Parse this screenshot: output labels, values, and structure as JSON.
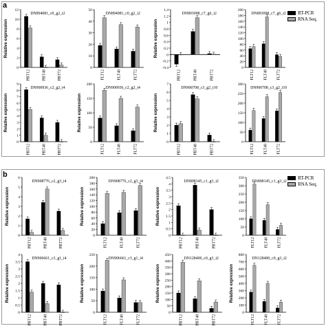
{
  "figure": {
    "panel_a_letter": "a",
    "panel_b_letter": "b",
    "legend": {
      "rt_pcr": "RT-PCR",
      "rna_seq": "RNA Seq."
    },
    "colors": {
      "rt_pcr": "#000000",
      "rna_seq": "#a8a8a8",
      "frame": "#9a9a9a"
    }
  },
  "chart_data": [
    {
      "type": "bar",
      "panel": "a",
      "title": "DN894081_c0_g2_i2",
      "ylabel": "Relative expression",
      "categories": [
        "PBT12",
        "PBT48",
        "PBT72"
      ],
      "ylim": [
        0,
        12
      ],
      "yticks": [
        0,
        2,
        4,
        6,
        8,
        10,
        12
      ],
      "series": [
        {
          "name": "RT-PCR",
          "values": [
            10.6,
            2.2,
            1.6
          ]
        },
        {
          "name": "RNA Seq.",
          "values": [
            8.2,
            0,
            0.5
          ]
        }
      ]
    },
    {
      "type": "bar",
      "panel": "a",
      "title": "DN894081_c0_g2_i2",
      "ylabel": "",
      "categories": [
        "FLT12",
        "FLT48",
        "FLT72"
      ],
      "ylim": [
        0,
        50
      ],
      "yticks": [
        0,
        10,
        20,
        30,
        40,
        50
      ],
      "series": [
        {
          "name": "RT-PCR",
          "values": [
            19,
            16,
            14
          ]
        },
        {
          "name": "RNA Seq.",
          "values": [
            43,
            37,
            35
          ]
        }
      ]
    },
    {
      "type": "bar",
      "panel": "a",
      "title": "DN893098_c7_g6_i2",
      "ylabel": "Relative expression",
      "categories": [
        "PBT12",
        "PBT48",
        "PBT72"
      ],
      "ylim": [
        -0.4,
        1.4
      ],
      "yticks": [
        -0.4,
        -0.2,
        0,
        0.2,
        0.4,
        0.6,
        0.8,
        1,
        1.2,
        1.4
      ],
      "series": [
        {
          "name": "RT-PCR",
          "values": [
            -0.3,
            0.72,
            0.03
          ]
        },
        {
          "name": "RNA Seq.",
          "values": [
            0,
            1.15,
            0.01
          ]
        }
      ]
    },
    {
      "type": "bar",
      "panel": "a",
      "title": "DN893098_c7_g6_i2",
      "ylabel": "",
      "categories": [
        "FLT12",
        "FLT48",
        "FLT72"
      ],
      "ylim": [
        0,
        200
      ],
      "yticks": [
        0,
        20,
        40,
        60,
        80,
        100,
        120,
        140,
        160,
        180,
        200
      ],
      "series": [
        {
          "name": "RT-PCR",
          "values": [
            65,
            82,
            44
          ]
        },
        {
          "name": "RNA Seq.",
          "values": [
            72,
            175,
            38
          ]
        }
      ]
    },
    {
      "type": "bar",
      "panel": "a",
      "title": "DN900936_c2_g2_i4",
      "ylabel": "Relative expression",
      "categories": [
        "PBT12",
        "PBT48",
        "PBT72"
      ],
      "ylim": [
        0,
        9
      ],
      "yticks": [
        0,
        1,
        2,
        3,
        4,
        5,
        6,
        7,
        8,
        9
      ],
      "series": [
        {
          "name": "RT-PCR",
          "values": [
            8.1,
            3.7,
            3.0
          ]
        },
        {
          "name": "RNA Seq.",
          "values": [
            5.0,
            1.0,
            0
          ]
        }
      ]
    },
    {
      "type": "bar",
      "panel": "a",
      "title": "DN900936_c2_g2_i4",
      "ylabel": "Relative expression",
      "categories": [
        "FLT12",
        "FLT48",
        "FLT72"
      ],
      "ylim": [
        0,
        200
      ],
      "yticks": [
        0,
        50,
        100,
        150,
        200
      ],
      "series": [
        {
          "name": "RT-PCR",
          "values": [
            82,
            55,
            38
          ]
        },
        {
          "name": "RNA Seq.",
          "values": [
            178,
            150,
            120
          ]
        }
      ]
    },
    {
      "type": "bar",
      "panel": "a",
      "title": "DN900708_c3_g2_i10",
      "ylabel": "Relative expression",
      "categories": [
        "PBT12",
        "PBT48",
        "PBT72"
      ],
      "ylim": [
        0,
        7
      ],
      "yticks": [
        0,
        1,
        2,
        3,
        4,
        5,
        6,
        7
      ],
      "series": [
        {
          "name": "RT-PCR",
          "values": [
            2.0,
            5.7,
            0.8
          ]
        },
        {
          "name": "RNA Seq.",
          "values": [
            2.2,
            5.2,
            0
          ]
        }
      ]
    },
    {
      "type": "bar",
      "panel": "a",
      "title": "DN900708_c3_g2_i10",
      "ylabel": "",
      "categories": [
        "FLT12",
        "FLT48",
        "FLT72"
      ],
      "ylim": [
        0,
        300
      ],
      "yticks": [
        0,
        50,
        100,
        150,
        200,
        250,
        300
      ],
      "series": [
        {
          "name": "RT-PCR",
          "values": [
            60,
            120,
            160
          ]
        },
        {
          "name": "RNA Seq.",
          "values": [
            162,
            233,
            255
          ]
        }
      ]
    },
    {
      "type": "bar",
      "panel": "b",
      "title": "DN908776_c2_g3_i4",
      "ylabel": "Relative expression",
      "categories": [
        "PBT12",
        "PBT48",
        "PBT72"
      ],
      "ylim": [
        0,
        6
      ],
      "yticks": [
        0,
        1,
        2,
        3,
        4,
        5,
        6
      ],
      "series": [
        {
          "name": "RT-PCR",
          "values": [
            1.7,
            3.4,
            2.5
          ]
        },
        {
          "name": "RNA Seq.",
          "values": [
            0.3,
            4.8,
            0.5
          ]
        }
      ]
    },
    {
      "type": "bar",
      "panel": "b",
      "title": "DN908776_c2_g3_i4",
      "ylabel": "Relative expression",
      "categories": [
        "FLT12",
        "FLT48",
        "FLT72"
      ],
      "ylim": [
        0,
        200
      ],
      "yticks": [
        0,
        20,
        40,
        60,
        80,
        100,
        120,
        140,
        160,
        180,
        200
      ],
      "series": [
        {
          "name": "RT-PCR",
          "values": [
            40,
            78,
            85
          ]
        },
        {
          "name": "RNA Seq.",
          "values": [
            145,
            148,
            172
          ]
        }
      ]
    },
    {
      "type": "bar",
      "panel": "b",
      "title": "DN898145_c1_g3_i2",
      "ylabel": "Relative expression",
      "categories": [
        "PBT12",
        "PBT48",
        "PBT72"
      ],
      "ylim": [
        0,
        4.5
      ],
      "yticks": [
        0,
        0.5,
        1,
        1.5,
        2,
        2.5,
        3,
        3.5,
        4,
        4.5
      ],
      "series": [
        {
          "name": "RT-PCR",
          "values": [
            2.3,
            3.9,
            2.0
          ]
        },
        {
          "name": "RNA Seq.",
          "values": [
            0,
            0.4,
            0
          ]
        }
      ]
    },
    {
      "type": "bar",
      "panel": "b",
      "title": "DN898145_c1_g3_i2",
      "ylabel": "",
      "categories": [
        "FLT12",
        "FLT48",
        "FLT72"
      ],
      "ylim": [
        0,
        350
      ],
      "yticks": [
        0,
        50,
        100,
        150,
        200,
        250,
        300,
        350
      ],
      "series": [
        {
          "name": "RT-PCR",
          "values": [
            100,
            90,
            35
          ]
        },
        {
          "name": "RNA Seq.",
          "values": [
            310,
            185,
            60
          ]
        }
      ]
    },
    {
      "type": "bar",
      "panel": "b",
      "title": "DN906661_c3_g1_i4",
      "ylabel": "Relative expression",
      "categories": [
        "PBT12",
        "PBT48",
        "PBT72"
      ],
      "ylim": [
        0,
        4
      ],
      "yticks": [
        0,
        0.5,
        1,
        1.5,
        2,
        2.5,
        3,
        3.5,
        4
      ],
      "series": [
        {
          "name": "RT-PCR",
          "values": [
            3.5,
            2.0,
            1.9
          ]
        },
        {
          "name": "RNA Seq.",
          "values": [
            1.4,
            0.6,
            0
          ]
        }
      ]
    },
    {
      "type": "bar",
      "panel": "b",
      "title": "DN906661_c3_g1_i4",
      "ylabel": "Relative expression",
      "categories": [
        "FLT12",
        "FLT48",
        "FLT72"
      ],
      "ylim": [
        0,
        250
      ],
      "yticks": [
        0,
        50,
        100,
        150,
        200,
        250
      ],
      "series": [
        {
          "name": "RT-PCR",
          "values": [
            92,
            62,
            42
          ]
        },
        {
          "name": "RNA Seq.",
          "values": [
            225,
            140,
            42
          ]
        }
      ]
    },
    {
      "type": "bar",
      "panel": "b",
      "title": "DN128400_c0_g3_i2",
      "ylabel": "Relative expression",
      "categories": [
        "PBT12",
        "PBT48",
        "PBT72"
      ],
      "ylim": [
        0,
        450
      ],
      "yticks": [
        0,
        50,
        100,
        150,
        200,
        250,
        300,
        350,
        400,
        450
      ],
      "series": [
        {
          "name": "RT-PCR",
          "values": [
            150,
            105,
            30
          ]
        },
        {
          "name": "RNA Seq.",
          "values": [
            390,
            245,
            80
          ]
        }
      ]
    },
    {
      "type": "bar",
      "panel": "b",
      "title": "DN128400_c0_g3_i2",
      "ylabel": "Relative expression",
      "categories": [
        "FLT12",
        "FLT48",
        "FLT72"
      ],
      "ylim": [
        0,
        800
      ],
      "yticks": [
        0,
        100,
        200,
        300,
        400,
        500,
        600,
        700,
        800
      ],
      "series": [
        {
          "name": "RT-PCR",
          "values": [
            280,
            150,
            60
          ]
        },
        {
          "name": "RNA Seq.",
          "values": [
            650,
            400,
            140
          ]
        }
      ]
    }
  ]
}
